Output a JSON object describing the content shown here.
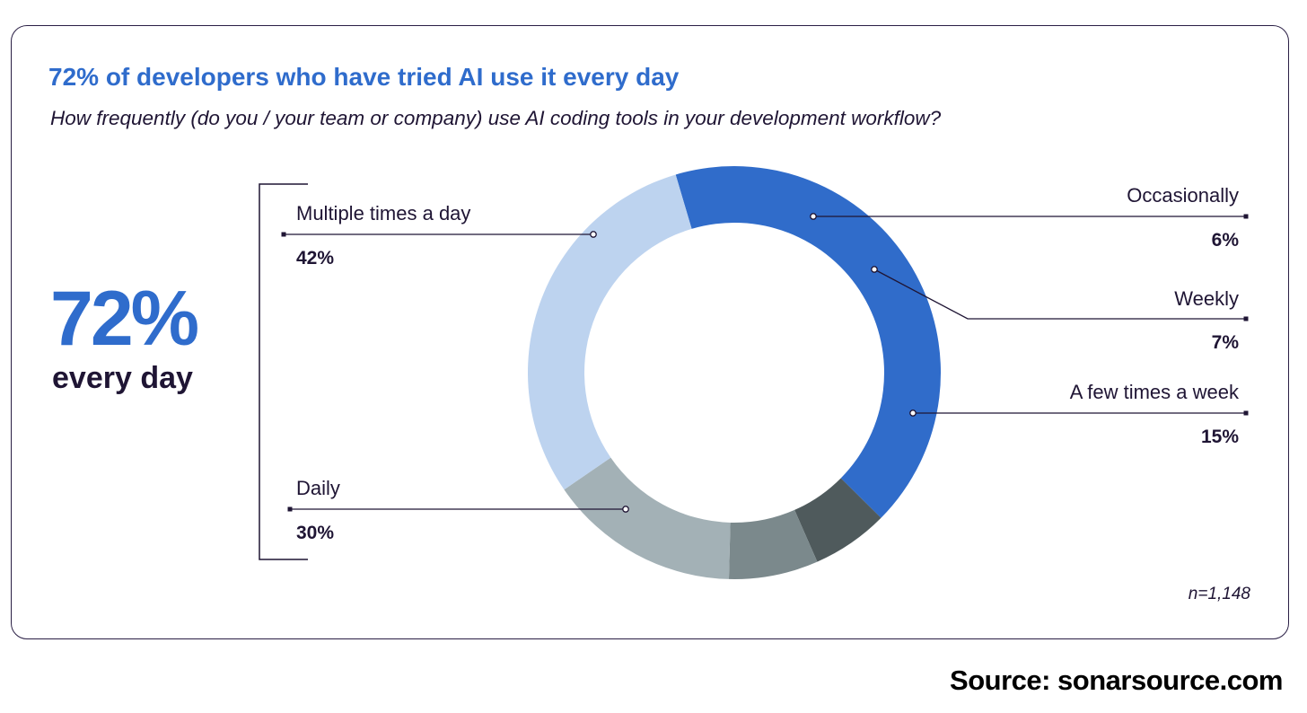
{
  "header": {
    "title": "72% of developers who have tried AI use it every day",
    "subtitle": "How frequently (do you / your team or company) use AI coding tools in your development workflow?"
  },
  "highlight": {
    "value": "72%",
    "caption": "every day"
  },
  "footnote": "n=1,148",
  "source": "Source: sonarsource.com",
  "chart_data": {
    "type": "pie",
    "variant": "donut",
    "title": "72% of developers who have tried AI use it every day",
    "subtitle": "How frequently (do you / your team or company) use AI coding tools in your development workflow?",
    "slices": [
      {
        "label": "Multiple times a day",
        "value": 42,
        "value_label": "42%",
        "color": "#306cca"
      },
      {
        "label": "Occasionally",
        "value": 6,
        "value_label": "6%",
        "color": "#4f5a5c"
      },
      {
        "label": "Weekly",
        "value": 7,
        "value_label": "7%",
        "color": "#7b898c"
      },
      {
        "label": "A few times a week",
        "value": 15,
        "value_label": "15%",
        "color": "#a3b1b6"
      },
      {
        "label": "Daily",
        "value": 30,
        "value_label": "30%",
        "color": "#bdd3ef"
      }
    ],
    "group_bracket": {
      "slices": [
        "Multiple times a day",
        "Daily"
      ],
      "label": "72% every day"
    },
    "leader_color": "#1f1534"
  }
}
